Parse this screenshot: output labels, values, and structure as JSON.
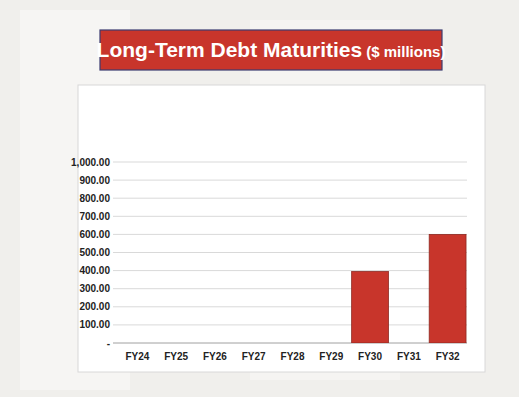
{
  "chart_data": {
    "type": "bar",
    "title": "Long-Term Debt Maturities",
    "subtitle": "($ millions)",
    "categories": [
      "FY24",
      "FY25",
      "FY26",
      "FY27",
      "FY28",
      "FY29",
      "FY30",
      "FY31",
      "FY32"
    ],
    "values": [
      0,
      0,
      0,
      0,
      0,
      0,
      395,
      0,
      600
    ],
    "color": "#c8352b",
    "ylim": [
      0,
      1000
    ],
    "yticks": [
      {
        "value": 0,
        "label": "-"
      },
      {
        "value": 100,
        "label": "100.00"
      },
      {
        "value": 200,
        "label": "200.00"
      },
      {
        "value": 300,
        "label": "300.00"
      },
      {
        "value": 400,
        "label": "400.00"
      },
      {
        "value": 500,
        "label": "500.00"
      },
      {
        "value": 600,
        "label": "600.00"
      },
      {
        "value": 700,
        "label": "700.00"
      },
      {
        "value": 800,
        "label": "800.00"
      },
      {
        "value": 900,
        "label": "900.00"
      },
      {
        "value": 1000,
        "label": "1,000.00"
      }
    ],
    "grid": true
  }
}
